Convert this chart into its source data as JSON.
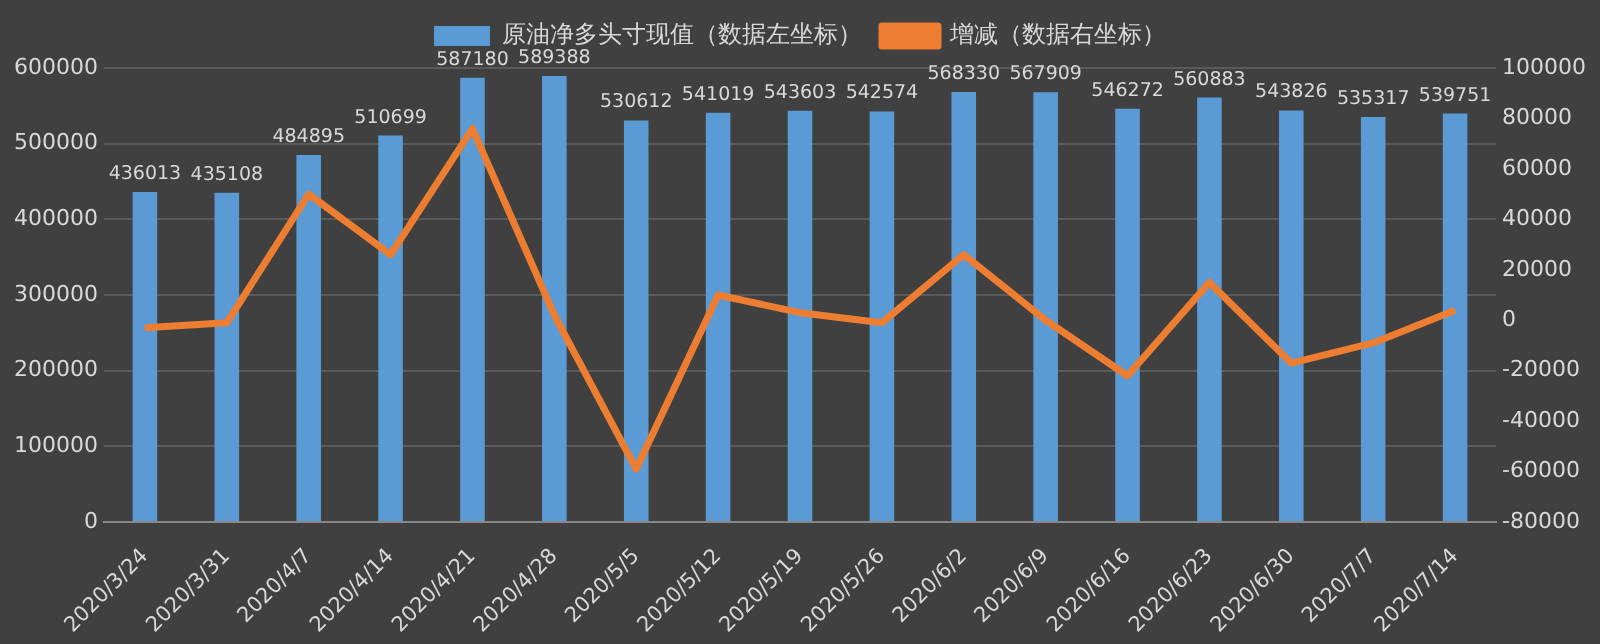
{
  "chart_data": {
    "type": "bar",
    "categories": [
      "2020/3/24",
      "2020/3/31",
      "2020/4/7",
      "2020/4/14",
      "2020/4/21",
      "2020/4/28",
      "2020/5/5",
      "2020/5/12",
      "2020/5/19",
      "2020/5/26",
      "2020/6/2",
      "2020/6/9",
      "2020/6/16",
      "2020/6/23",
      "2020/6/30",
      "2020/7/7",
      "2020/7/14"
    ],
    "series": [
      {
        "name": "原油净多头寸现值（数据左坐标）",
        "color": "#5b9bd5",
        "values": [
          436013,
          435108,
          484895,
          510699,
          587180,
          589388,
          530612,
          541019,
          543603,
          542574,
          568330,
          567909,
          546272,
          560883,
          543826,
          535317,
          539751
        ],
        "data_labels": true
      },
      {
        "name": "增减（数据右坐标）",
        "type": "line",
        "axis": "y2",
        "color": "#ed7d31",
        "values": [
          -3000,
          -1000,
          50000,
          26000,
          76000,
          2000,
          -59000,
          10000,
          3000,
          -1000,
          26000,
          0,
          -22000,
          15000,
          -17000,
          -9000,
          4000
        ]
      }
    ],
    "ylim": [
      0,
      600000
    ],
    "yticks": [
      0,
      100000,
      200000,
      300000,
      400000,
      500000,
      600000
    ],
    "y2lim": [
      -80000,
      100000
    ],
    "y2ticks": [
      -80000,
      -60000,
      -40000,
      -20000,
      0,
      20000,
      40000,
      60000,
      80000,
      100000
    ],
    "grid": "y",
    "legend": "top",
    "marker": "none",
    "line_style": "solid"
  }
}
